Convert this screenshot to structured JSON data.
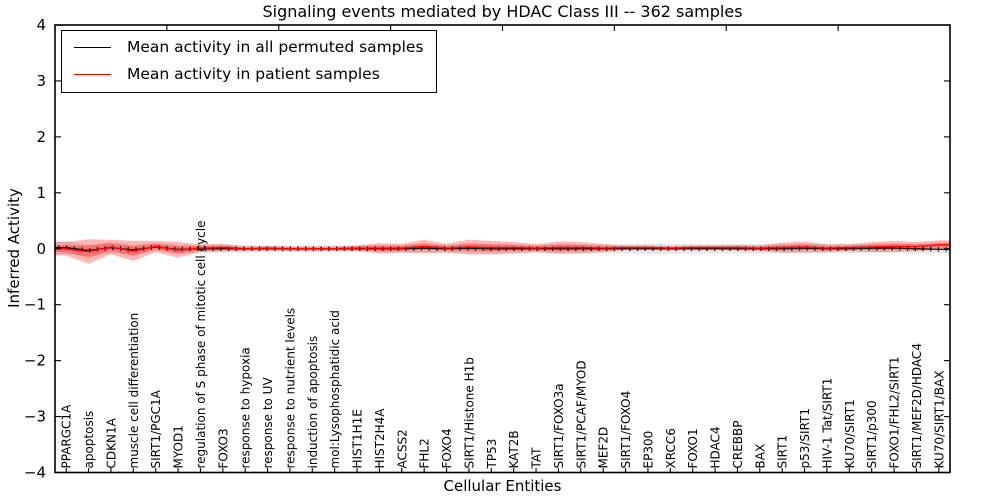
{
  "title": "Signaling events mediated by HDAC Class III -- 362 samples",
  "axes": {
    "x_label": "Cellular Entities",
    "y_label": "Inferred Activity"
  },
  "legend": {
    "items": [
      {
        "label": "Mean activity in all permuted samples",
        "color": "#000000"
      },
      {
        "label": "Mean activity in patient samples",
        "color": "#ff0000"
      }
    ],
    "position": "upper left"
  },
  "chart_data": {
    "type": "line",
    "title": "Signaling events mediated by HDAC Class III -- 362 samples",
    "xlabel": "Cellular Entities",
    "ylabel": "Inferred Activity",
    "ylim": [
      -4,
      4
    ],
    "yticks": [
      -4,
      -3,
      -2,
      -1,
      0,
      1,
      2,
      3,
      4
    ],
    "grid": false,
    "legend_position": "upper left",
    "categories": [
      "PPARGC1A",
      "apoptosis",
      "CDKN1A",
      "muscle cell differentiation",
      "SIRT1/PGC1A",
      "MYOD1",
      "regulation of S phase of mitotic cell cycle",
      "FOXO3",
      "response to hypoxia",
      "response to UV",
      "response to nutrient levels",
      "induction of apoptosis",
      "mol:Lysophosphatidic acid",
      "HIST1H1E",
      "HIST2H4A",
      "ACSS2",
      "FHL2",
      "FOXO4",
      "SIRT1/Histone H1b",
      "TP53",
      "KAT2B",
      "TAT",
      "SIRT1/FOXO3a",
      "SIRT1/PCAF/MYOD",
      "MEF2D",
      "SIRT1/FOXO4",
      "EP300",
      "XRCC6",
      "FOXO1",
      "HDAC4",
      "CREBBP",
      "BAX",
      "SIRT1",
      "p53/SIRT1",
      "HIV-1 Tat/SIRT1",
      "KU70/SIRT1",
      "SIRT1/p300",
      "FOXO1/FHL2/SIRT1",
      "SIRT1/MEF2D/HDAC4",
      "KU70/SIRT1/BAX"
    ],
    "series": [
      {
        "name": "Mean activity in all permuted samples",
        "color": "#000000",
        "band_color": "#999999",
        "values": [
          0.02,
          -0.03,
          0.02,
          -0.02,
          0.03,
          -0.01,
          0,
          0,
          0,
          0,
          0,
          0,
          0,
          0,
          0,
          0,
          0.01,
          0,
          0.01,
          0,
          0,
          0,
          0,
          0,
          0,
          0,
          0,
          0,
          0,
          0,
          0,
          0,
          0,
          0.01,
          0,
          0,
          0.01,
          0.01,
          0,
          -0.01
        ],
        "band_halfwidth": [
          0.12,
          0.1,
          0.1,
          0.09,
          0.08,
          0.08,
          0.07,
          0.07,
          0.07,
          0.06,
          0.06,
          0.06,
          0.06,
          0.06,
          0.07,
          0.07,
          0.07,
          0.07,
          0.08,
          0.08,
          0.08,
          0.07,
          0.08,
          0.08,
          0.08,
          0.08,
          0.09,
          0.09,
          0.08,
          0.08,
          0.08,
          0.08,
          0.08,
          0.08,
          0.08,
          0.08,
          0.08,
          0.08,
          0.08,
          0.08
        ]
      },
      {
        "name": "Mean activity in patient samples",
        "color": "#ff0000",
        "band_color": "#ff0000",
        "values": [
          0.0,
          -0.05,
          0.03,
          -0.04,
          0.04,
          -0.02,
          0.01,
          0.02,
          0,
          0.01,
          0,
          0,
          0,
          0.01,
          0.01,
          0.01,
          0.04,
          0.01,
          0.03,
          0.02,
          0.02,
          0.01,
          0.02,
          0.02,
          0.01,
          0.02,
          0.02,
          0.01,
          0.02,
          0.02,
          0.02,
          0.01,
          0.02,
          0.03,
          0.01,
          0.02,
          0.03,
          0.04,
          0.04,
          0.07
        ],
        "band_halfwidth": [
          0.12,
          0.22,
          0.13,
          0.18,
          0.1,
          0.14,
          0.07,
          0.07,
          0.04,
          0.04,
          0.04,
          0.04,
          0.04,
          0.05,
          0.09,
          0.08,
          0.12,
          0.08,
          0.13,
          0.12,
          0.1,
          0.07,
          0.11,
          0.1,
          0.07,
          0.04,
          0.04,
          0.04,
          0.04,
          0.04,
          0.05,
          0.05,
          0.09,
          0.1,
          0.07,
          0.06,
          0.09,
          0.1,
          0.08,
          0.08
        ]
      }
    ]
  }
}
